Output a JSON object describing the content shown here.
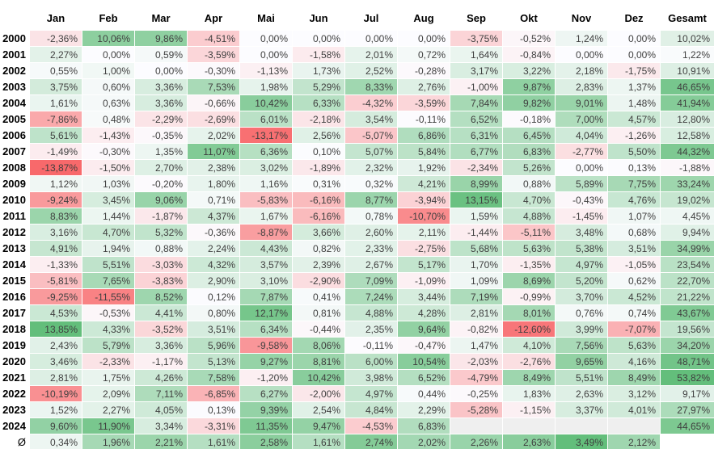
{
  "chart_data": {
    "type": "heatmap",
    "title": "",
    "columns": [
      "Jan",
      "Feb",
      "Mar",
      "Apr",
      "Mai",
      "Jun",
      "Jul",
      "Aug",
      "Sep",
      "Okt",
      "Nov",
      "Dez",
      "Gesamt"
    ],
    "rows": [
      {
        "label": "2000",
        "values": [
          "-2,36%",
          "10,06%",
          "9,86%",
          "-4,51%",
          "0,00%",
          "0,00%",
          "0,00%",
          "0,00%",
          "-3,75%",
          "-0,52%",
          "1,24%",
          "0,00%",
          "10,02%"
        ]
      },
      {
        "label": "2001",
        "values": [
          "2,27%",
          "0,00%",
          "0,59%",
          "-3,59%",
          "0,00%",
          "-1,58%",
          "2,01%",
          "0,72%",
          "1,64%",
          "-0,84%",
          "0,00%",
          "0,00%",
          "1,22%"
        ]
      },
      {
        "label": "2002",
        "values": [
          "0,55%",
          "1,00%",
          "0,00%",
          "-0,30%",
          "-1,13%",
          "1,73%",
          "2,52%",
          "-0,28%",
          "3,17%",
          "3,22%",
          "2,18%",
          "-1,75%",
          "10,91%"
        ]
      },
      {
        "label": "2003",
        "values": [
          "3,75%",
          "0,60%",
          "3,36%",
          "7,53%",
          "1,98%",
          "5,29%",
          "8,33%",
          "2,76%",
          "-1,00%",
          "9,87%",
          "2,83%",
          "1,37%",
          "46,65%"
        ]
      },
      {
        "label": "2004",
        "values": [
          "1,61%",
          "0,63%",
          "3,36%",
          "-0,66%",
          "10,42%",
          "6,33%",
          "-4,32%",
          "-3,59%",
          "7,84%",
          "9,82%",
          "9,01%",
          "1,48%",
          "41,94%"
        ]
      },
      {
        "label": "2005",
        "values": [
          "-7,86%",
          "0,48%",
          "-2,29%",
          "-2,69%",
          "6,01%",
          "-2,18%",
          "3,54%",
          "-0,11%",
          "6,52%",
          "-0,18%",
          "7,00%",
          "4,57%",
          "12,80%"
        ]
      },
      {
        "label": "2006",
        "values": [
          "5,61%",
          "-1,43%",
          "-0,35%",
          "2,02%",
          "-13,17%",
          "2,56%",
          "-5,07%",
          "6,86%",
          "6,31%",
          "6,45%",
          "4,04%",
          "-1,26%",
          "12,58%"
        ]
      },
      {
        "label": "2007",
        "values": [
          "-1,49%",
          "-0,30%",
          "1,35%",
          "11,07%",
          "6,36%",
          "0,10%",
          "5,07%",
          "5,84%",
          "6,77%",
          "6,83%",
          "-2,77%",
          "5,50%",
          "44,32%"
        ]
      },
      {
        "label": "2008",
        "values": [
          "-13,87%",
          "-1,50%",
          "2,70%",
          "2,38%",
          "3,02%",
          "-1,89%",
          "2,32%",
          "1,92%",
          "-2,34%",
          "5,26%",
          "0,00%",
          "0,13%",
          "-1,88%"
        ]
      },
      {
        "label": "2009",
        "values": [
          "1,12%",
          "1,03%",
          "-0,20%",
          "1,80%",
          "1,16%",
          "0,31%",
          "0,32%",
          "4,21%",
          "8,99%",
          "0,88%",
          "5,89%",
          "7,75%",
          "33,24%"
        ]
      },
      {
        "label": "2010",
        "values": [
          "-9,24%",
          "3,45%",
          "9,06%",
          "0,71%",
          "-5,83%",
          "-6,16%",
          "8,77%",
          "-3,94%",
          "13,15%",
          "4,70%",
          "-0,43%",
          "4,76%",
          "19,02%"
        ]
      },
      {
        "label": "2011",
        "values": [
          "8,83%",
          "1,44%",
          "-1,87%",
          "4,37%",
          "1,67%",
          "-6,16%",
          "0,78%",
          "-10,70%",
          "1,59%",
          "4,88%",
          "-1,45%",
          "1,07%",
          "4,45%"
        ]
      },
      {
        "label": "2012",
        "values": [
          "3,16%",
          "4,70%",
          "5,32%",
          "-0,36%",
          "-8,87%",
          "3,66%",
          "2,60%",
          "2,11%",
          "-1,44%",
          "-5,11%",
          "3,48%",
          "0,68%",
          "9,94%"
        ]
      },
      {
        "label": "2013",
        "values": [
          "4,91%",
          "1,94%",
          "0,88%",
          "2,24%",
          "4,43%",
          "0,82%",
          "2,33%",
          "-2,75%",
          "5,68%",
          "5,63%",
          "5,38%",
          "3,51%",
          "34,99%"
        ]
      },
      {
        "label": "2014",
        "values": [
          "-1,33%",
          "5,51%",
          "-3,03%",
          "4,32%",
          "3,57%",
          "2,39%",
          "2,67%",
          "5,17%",
          "1,70%",
          "-1,35%",
          "4,97%",
          "-1,05%",
          "23,54%"
        ]
      },
      {
        "label": "2015",
        "values": [
          "-5,81%",
          "7,65%",
          "-3,83%",
          "2,90%",
          "3,10%",
          "-2,90%",
          "7,09%",
          "-1,09%",
          "1,09%",
          "8,69%",
          "5,20%",
          "0,62%",
          "22,70%"
        ]
      },
      {
        "label": "2016",
        "values": [
          "-9,25%",
          "-11,55%",
          "8,52%",
          "0,12%",
          "7,87%",
          "0,41%",
          "7,24%",
          "3,44%",
          "7,19%",
          "-0,99%",
          "3,70%",
          "4,52%",
          "21,22%"
        ]
      },
      {
        "label": "2017",
        "values": [
          "4,53%",
          "-0,53%",
          "4,41%",
          "0,80%",
          "12,17%",
          "0,81%",
          "4,88%",
          "4,28%",
          "2,81%",
          "8,01%",
          "0,76%",
          "0,74%",
          "43,67%"
        ]
      },
      {
        "label": "2018",
        "values": [
          "13,85%",
          "4,33%",
          "-3,52%",
          "3,51%",
          "6,34%",
          "-0,44%",
          "2,35%",
          "9,64%",
          "-0,82%",
          "-12,60%",
          "3,99%",
          "-7,07%",
          "19,56%"
        ]
      },
      {
        "label": "2019",
        "values": [
          "2,43%",
          "5,79%",
          "3,36%",
          "5,96%",
          "-9,58%",
          "8,06%",
          "-0,11%",
          "-0,47%",
          "1,47%",
          "4,10%",
          "7,56%",
          "5,63%",
          "34,20%"
        ]
      },
      {
        "label": "2020",
        "values": [
          "3,46%",
          "-2,33%",
          "-1,17%",
          "5,13%",
          "9,27%",
          "8,81%",
          "6,00%",
          "10,54%",
          "-2,03%",
          "-2,76%",
          "9,65%",
          "4,16%",
          "48,71%"
        ]
      },
      {
        "label": "2021",
        "values": [
          "2,81%",
          "1,75%",
          "4,26%",
          "7,58%",
          "-1,20%",
          "10,42%",
          "3,98%",
          "6,52%",
          "-4,79%",
          "8,49%",
          "5,51%",
          "8,49%",
          "53,82%"
        ]
      },
      {
        "label": "2022",
        "values": [
          "-10,19%",
          "2,09%",
          "7,11%",
          "-6,85%",
          "6,27%",
          "-2,00%",
          "4,97%",
          "0,44%",
          "-0,25%",
          "1,83%",
          "2,63%",
          "3,12%",
          "9,17%"
        ]
      },
      {
        "label": "2023",
        "values": [
          "1,52%",
          "2,27%",
          "4,05%",
          "0,13%",
          "9,39%",
          "2,54%",
          "4,84%",
          "2,29%",
          "-5,28%",
          "-1,15%",
          "3,37%",
          "4,01%",
          "27,97%"
        ]
      },
      {
        "label": "2024",
        "values": [
          "9,60%",
          "11,90%",
          "3,34%",
          "-3,31%",
          "11,35%",
          "9,47%",
          "-4,53%",
          "6,83%",
          "",
          "",
          "",
          "",
          "44,65%"
        ]
      },
      {
        "label": "Ø",
        "is_average": true,
        "values": [
          "0,34%",
          "1,96%",
          "2,21%",
          "1,61%",
          "2,58%",
          "1,61%",
          "2,74%",
          "2,02%",
          "2,26%",
          "2,63%",
          "3,49%",
          "2,12%",
          ""
        ]
      }
    ],
    "colors": {
      "max_red": "#F8696B",
      "max_green": "#63BE7B",
      "midpoint": "#FCFCFF",
      "empty_fill": "#EFEFEF",
      "value_text": "#3F3F3F",
      "label_text": "#000000"
    },
    "scales": {
      "monthly_max_abs": 13.87,
      "gesamt_max_abs": 53.82,
      "average_max": 3.49
    },
    "layout": {
      "decimal_separator": ",",
      "grid": "thin-white-borders",
      "legend": "none"
    }
  }
}
